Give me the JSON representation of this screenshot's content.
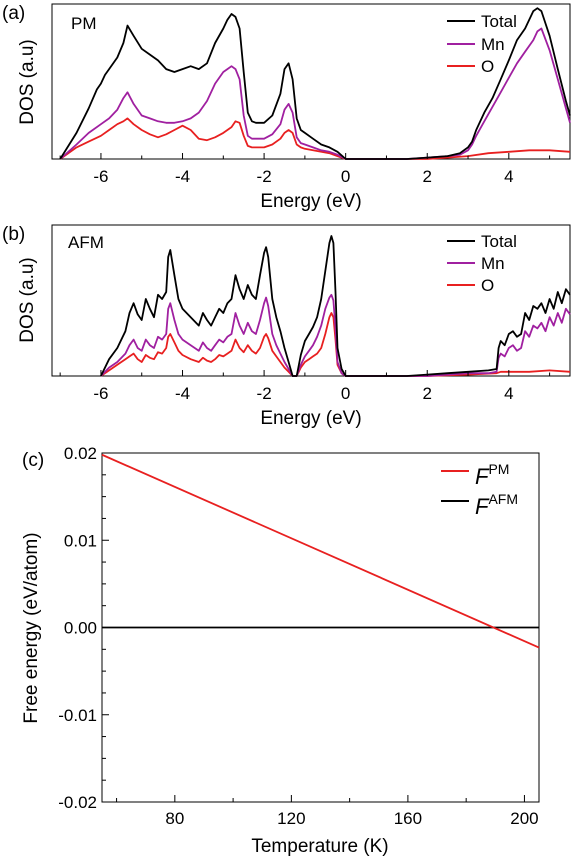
{
  "chart_data": [
    {
      "type": "line",
      "panel_label": "(a)",
      "inset_label": "PM",
      "xlabel": "Energy (eV)",
      "ylabel": "DOS (a.u)",
      "xlim": [
        -7.2,
        5.5
      ],
      "ylim": [
        0,
        1
      ],
      "xticks": [
        -6,
        -4,
        -2,
        0,
        2,
        4
      ],
      "legend_position": "top-right",
      "series": [
        {
          "name": "Total",
          "color": "#000000",
          "x": [
            -7.0,
            -6.6,
            -6.3,
            -6.1,
            -6.0,
            -5.9,
            -5.8,
            -5.6,
            -5.45,
            -5.35,
            -5.2,
            -5.0,
            -4.8,
            -4.6,
            -4.4,
            -4.2,
            -4.0,
            -3.8,
            -3.6,
            -3.4,
            -3.2,
            -3.0,
            -2.9,
            -2.8,
            -2.7,
            -2.6,
            -2.5,
            -2.4,
            -2.3,
            -2.2,
            -2.0,
            -1.8,
            -1.6,
            -1.5,
            -1.4,
            -1.3,
            -1.2,
            -1.1,
            -1.0,
            -0.8,
            -0.6,
            -0.4,
            -0.2,
            0.0,
            0.2,
            0.6,
            1.0,
            1.5,
            2.0,
            2.5,
            2.8,
            3.0,
            3.1,
            3.2,
            3.4,
            3.6,
            3.8,
            4.0,
            4.2,
            4.4,
            4.6,
            4.7,
            4.8,
            5.0,
            5.2,
            5.4,
            5.5
          ],
          "y": [
            0.0,
            0.18,
            0.35,
            0.48,
            0.52,
            0.58,
            0.62,
            0.7,
            0.8,
            0.92,
            0.85,
            0.76,
            0.72,
            0.68,
            0.62,
            0.6,
            0.62,
            0.64,
            0.62,
            0.66,
            0.8,
            0.9,
            0.96,
            1.0,
            0.98,
            0.9,
            0.6,
            0.32,
            0.26,
            0.25,
            0.25,
            0.3,
            0.45,
            0.62,
            0.66,
            0.55,
            0.28,
            0.2,
            0.18,
            0.14,
            0.1,
            0.08,
            0.05,
            0.0,
            0.0,
            0.0,
            0.0,
            0.0,
            0.01,
            0.02,
            0.04,
            0.08,
            0.12,
            0.2,
            0.32,
            0.42,
            0.55,
            0.68,
            0.82,
            0.9,
            1.02,
            1.04,
            1.02,
            0.85,
            0.62,
            0.4,
            0.3
          ]
        },
        {
          "name": "Mn",
          "color": "#a020a0",
          "x": [
            -7.0,
            -6.6,
            -6.3,
            -6.0,
            -5.8,
            -5.6,
            -5.45,
            -5.35,
            -5.2,
            -5.0,
            -4.8,
            -4.6,
            -4.4,
            -4.2,
            -4.0,
            -3.8,
            -3.6,
            -3.4,
            -3.2,
            -3.0,
            -2.9,
            -2.8,
            -2.7,
            -2.6,
            -2.5,
            -2.4,
            -2.3,
            -2.2,
            -2.0,
            -1.8,
            -1.6,
            -1.5,
            -1.4,
            -1.3,
            -1.2,
            -1.1,
            -1.0,
            -0.8,
            -0.6,
            -0.4,
            -0.2,
            0.0,
            0.2,
            0.6,
            1.0,
            1.5,
            2.0,
            2.5,
            2.8,
            3.0,
            3.1,
            3.2,
            3.4,
            3.6,
            3.8,
            4.0,
            4.2,
            4.4,
            4.6,
            4.7,
            4.8,
            5.0,
            5.2,
            5.4,
            5.5
          ],
          "y": [
            0.0,
            0.1,
            0.18,
            0.24,
            0.28,
            0.34,
            0.42,
            0.46,
            0.38,
            0.3,
            0.28,
            0.26,
            0.25,
            0.25,
            0.26,
            0.28,
            0.32,
            0.4,
            0.52,
            0.6,
            0.62,
            0.64,
            0.62,
            0.55,
            0.3,
            0.16,
            0.14,
            0.14,
            0.14,
            0.17,
            0.24,
            0.34,
            0.38,
            0.32,
            0.15,
            0.11,
            0.1,
            0.08,
            0.06,
            0.05,
            0.03,
            0.0,
            0.0,
            0.0,
            0.0,
            0.0,
            0.01,
            0.02,
            0.03,
            0.06,
            0.1,
            0.16,
            0.26,
            0.36,
            0.46,
            0.56,
            0.66,
            0.74,
            0.82,
            0.88,
            0.9,
            0.75,
            0.55,
            0.35,
            0.25
          ]
        },
        {
          "name": "O",
          "color": "#e82020",
          "x": [
            -7.0,
            -6.6,
            -6.3,
            -6.0,
            -5.8,
            -5.6,
            -5.45,
            -5.35,
            -5.2,
            -5.0,
            -4.8,
            -4.6,
            -4.4,
            -4.2,
            -4.0,
            -3.8,
            -3.6,
            -3.4,
            -3.2,
            -3.0,
            -2.9,
            -2.8,
            -2.7,
            -2.6,
            -2.5,
            -2.4,
            -2.3,
            -2.2,
            -2.0,
            -1.8,
            -1.6,
            -1.5,
            -1.4,
            -1.3,
            -1.2,
            -1.1,
            -1.0,
            -0.8,
            -0.6,
            -0.4,
            -0.2,
            0.0,
            0.2,
            0.6,
            1.0,
            1.5,
            2.0,
            2.5,
            3.0,
            3.5,
            4.0,
            4.5,
            5.0,
            5.5
          ],
          "y": [
            0.0,
            0.08,
            0.12,
            0.16,
            0.2,
            0.24,
            0.26,
            0.28,
            0.24,
            0.2,
            0.17,
            0.15,
            0.17,
            0.2,
            0.23,
            0.2,
            0.14,
            0.13,
            0.15,
            0.18,
            0.2,
            0.22,
            0.26,
            0.25,
            0.16,
            0.09,
            0.08,
            0.08,
            0.08,
            0.1,
            0.14,
            0.18,
            0.2,
            0.18,
            0.1,
            0.08,
            0.07,
            0.06,
            0.05,
            0.04,
            0.02,
            0.0,
            0.0,
            0.0,
            0.0,
            0.0,
            0.0,
            0.01,
            0.02,
            0.04,
            0.05,
            0.06,
            0.06,
            0.05
          ]
        }
      ]
    },
    {
      "type": "line",
      "panel_label": "(b)",
      "inset_label": "AFM",
      "xlabel": "Energy (eV)",
      "ylabel": "DOS (a.u)",
      "xlim": [
        -7.2,
        5.5
      ],
      "ylim": [
        0,
        1
      ],
      "xticks": [
        -6,
        -4,
        -2,
        0,
        2,
        4
      ],
      "legend_position": "top-right",
      "series": [
        {
          "name": "Total",
          "color": "#000000",
          "x": [
            -6.0,
            -5.8,
            -5.6,
            -5.4,
            -5.3,
            -5.2,
            -5.1,
            -5.0,
            -4.9,
            -4.8,
            -4.7,
            -4.6,
            -4.5,
            -4.4,
            -4.35,
            -4.3,
            -4.2,
            -4.1,
            -4.0,
            -3.8,
            -3.6,
            -3.5,
            -3.4,
            -3.3,
            -3.2,
            -3.1,
            -3.0,
            -2.9,
            -2.8,
            -2.7,
            -2.6,
            -2.5,
            -2.4,
            -2.3,
            -2.2,
            -2.1,
            -2.0,
            -1.95,
            -1.9,
            -1.8,
            -1.7,
            -1.6,
            -1.5,
            -1.4,
            -1.3,
            -1.2,
            -1.1,
            -1.0,
            -0.9,
            -0.8,
            -0.7,
            -0.6,
            -0.5,
            -0.4,
            -0.35,
            -0.3,
            -0.25,
            -0.2,
            -0.1,
            0.0,
            0.5,
            1.0,
            1.5,
            2.0,
            2.5,
            3.0,
            3.5,
            3.7,
            3.75,
            3.8,
            3.9,
            4.0,
            4.1,
            4.2,
            4.3,
            4.4,
            4.5,
            4.6,
            4.7,
            4.8,
            4.9,
            5.0,
            5.1,
            5.2,
            5.3,
            5.4,
            5.5
          ],
          "y": [
            0.0,
            0.12,
            0.2,
            0.32,
            0.45,
            0.52,
            0.44,
            0.4,
            0.55,
            0.48,
            0.42,
            0.58,
            0.55,
            0.6,
            0.85,
            0.9,
            0.72,
            0.55,
            0.48,
            0.42,
            0.36,
            0.45,
            0.4,
            0.36,
            0.42,
            0.48,
            0.45,
            0.52,
            0.55,
            0.72,
            0.62,
            0.55,
            0.65,
            0.58,
            0.55,
            0.72,
            0.88,
            0.92,
            0.85,
            0.55,
            0.42,
            0.32,
            0.2,
            0.1,
            0.0,
            0.0,
            0.15,
            0.25,
            0.3,
            0.35,
            0.42,
            0.55,
            0.75,
            0.95,
            1.0,
            0.95,
            0.6,
            0.2,
            0.05,
            0.0,
            0.0,
            0.0,
            0.0,
            0.01,
            0.02,
            0.03,
            0.04,
            0.05,
            0.2,
            0.25,
            0.22,
            0.3,
            0.32,
            0.28,
            0.3,
            0.45,
            0.4,
            0.5,
            0.48,
            0.52,
            0.45,
            0.55,
            0.48,
            0.6,
            0.52,
            0.62,
            0.58
          ]
        },
        {
          "name": "Mn",
          "color": "#a020a0",
          "x": [
            -6.0,
            -5.8,
            -5.6,
            -5.4,
            -5.3,
            -5.2,
            -5.1,
            -5.0,
            -4.9,
            -4.8,
            -4.7,
            -4.6,
            -4.5,
            -4.4,
            -4.35,
            -4.3,
            -4.2,
            -4.1,
            -4.0,
            -3.8,
            -3.6,
            -3.5,
            -3.4,
            -3.3,
            -3.2,
            -3.1,
            -3.0,
            -2.9,
            -2.8,
            -2.7,
            -2.6,
            -2.5,
            -2.4,
            -2.3,
            -2.2,
            -2.1,
            -2.0,
            -1.95,
            -1.9,
            -1.8,
            -1.7,
            -1.6,
            -1.5,
            -1.4,
            -1.3,
            -1.2,
            -1.1,
            -1.0,
            -0.9,
            -0.8,
            -0.7,
            -0.6,
            -0.5,
            -0.4,
            -0.35,
            -0.3,
            -0.25,
            -0.2,
            -0.1,
            0.0,
            0.5,
            1.0,
            1.5,
            2.0,
            2.5,
            3.0,
            3.5,
            3.7,
            3.75,
            3.8,
            3.9,
            4.0,
            4.1,
            4.2,
            4.3,
            4.4,
            4.5,
            4.6,
            4.7,
            4.8,
            4.9,
            5.0,
            5.1,
            5.2,
            5.3,
            5.4,
            5.5
          ],
          "y": [
            0.0,
            0.06,
            0.1,
            0.16,
            0.22,
            0.26,
            0.2,
            0.18,
            0.26,
            0.22,
            0.2,
            0.28,
            0.26,
            0.3,
            0.48,
            0.52,
            0.4,
            0.3,
            0.26,
            0.22,
            0.18,
            0.24,
            0.2,
            0.18,
            0.22,
            0.26,
            0.24,
            0.28,
            0.3,
            0.45,
            0.36,
            0.3,
            0.38,
            0.32,
            0.3,
            0.4,
            0.52,
            0.56,
            0.5,
            0.3,
            0.22,
            0.16,
            0.1,
            0.05,
            0.0,
            0.0,
            0.08,
            0.14,
            0.18,
            0.22,
            0.28,
            0.36,
            0.48,
            0.56,
            0.58,
            0.54,
            0.34,
            0.1,
            0.02,
            0.0,
            0.0,
            0.0,
            0.0,
            0.0,
            0.01,
            0.02,
            0.02,
            0.03,
            0.13,
            0.16,
            0.14,
            0.2,
            0.22,
            0.18,
            0.2,
            0.32,
            0.28,
            0.36,
            0.34,
            0.38,
            0.32,
            0.42,
            0.36,
            0.45,
            0.38,
            0.48,
            0.44
          ]
        },
        {
          "name": "O",
          "color": "#e82020",
          "x": [
            -6.0,
            -5.8,
            -5.6,
            -5.4,
            -5.3,
            -5.2,
            -5.1,
            -5.0,
            -4.9,
            -4.8,
            -4.7,
            -4.6,
            -4.5,
            -4.4,
            -4.35,
            -4.3,
            -4.2,
            -4.1,
            -4.0,
            -3.8,
            -3.6,
            -3.5,
            -3.4,
            -3.3,
            -3.2,
            -3.1,
            -3.0,
            -2.9,
            -2.8,
            -2.7,
            -2.6,
            -2.5,
            -2.4,
            -2.3,
            -2.2,
            -2.1,
            -2.0,
            -1.95,
            -1.9,
            -1.8,
            -1.7,
            -1.6,
            -1.5,
            -1.4,
            -1.3,
            -1.2,
            -1.1,
            -1.0,
            -0.9,
            -0.8,
            -0.7,
            -0.6,
            -0.5,
            -0.4,
            -0.35,
            -0.3,
            -0.25,
            -0.2,
            -0.1,
            0.0,
            1.0,
            2.0,
            3.0,
            3.7,
            3.8,
            4.0,
            4.5,
            5.0,
            5.5
          ],
          "y": [
            0.0,
            0.04,
            0.08,
            0.12,
            0.14,
            0.16,
            0.12,
            0.1,
            0.15,
            0.13,
            0.12,
            0.17,
            0.16,
            0.2,
            0.28,
            0.3,
            0.24,
            0.18,
            0.15,
            0.12,
            0.1,
            0.13,
            0.11,
            0.1,
            0.12,
            0.15,
            0.14,
            0.16,
            0.18,
            0.26,
            0.2,
            0.17,
            0.22,
            0.18,
            0.16,
            0.2,
            0.28,
            0.3,
            0.27,
            0.18,
            0.14,
            0.1,
            0.06,
            0.03,
            0.0,
            0.0,
            0.06,
            0.1,
            0.12,
            0.14,
            0.16,
            0.2,
            0.3,
            0.42,
            0.45,
            0.42,
            0.26,
            0.08,
            0.02,
            0.0,
            0.0,
            0.0,
            0.01,
            0.02,
            0.03,
            0.03,
            0.03,
            0.04,
            0.03
          ]
        }
      ]
    },
    {
      "type": "line",
      "panel_label": "(c)",
      "xlabel": "Temperature (K)",
      "ylabel": "Free energy (eV/atom)",
      "xlim": [
        55,
        205
      ],
      "ylim": [
        -0.02,
        0.02
      ],
      "xticks": [
        80,
        120,
        160,
        200
      ],
      "yticks": [
        -0.02,
        -0.01,
        0.0,
        0.01,
        0.02
      ],
      "ytick_labels": [
        "-0.02",
        "-0.01",
        "0.00",
        "0.01",
        "0.02"
      ],
      "legend_position": "top-right",
      "series": [
        {
          "name_base": "F",
          "name_sup": "PM",
          "color": "#e82020",
          "x": [
            55,
            205
          ],
          "y": [
            0.0198,
            -0.0023
          ]
        },
        {
          "name_base": "F",
          "name_sup": "AFM",
          "color": "#000000",
          "x": [
            55,
            205
          ],
          "y": [
            0.0,
            0.0
          ]
        }
      ]
    }
  ]
}
